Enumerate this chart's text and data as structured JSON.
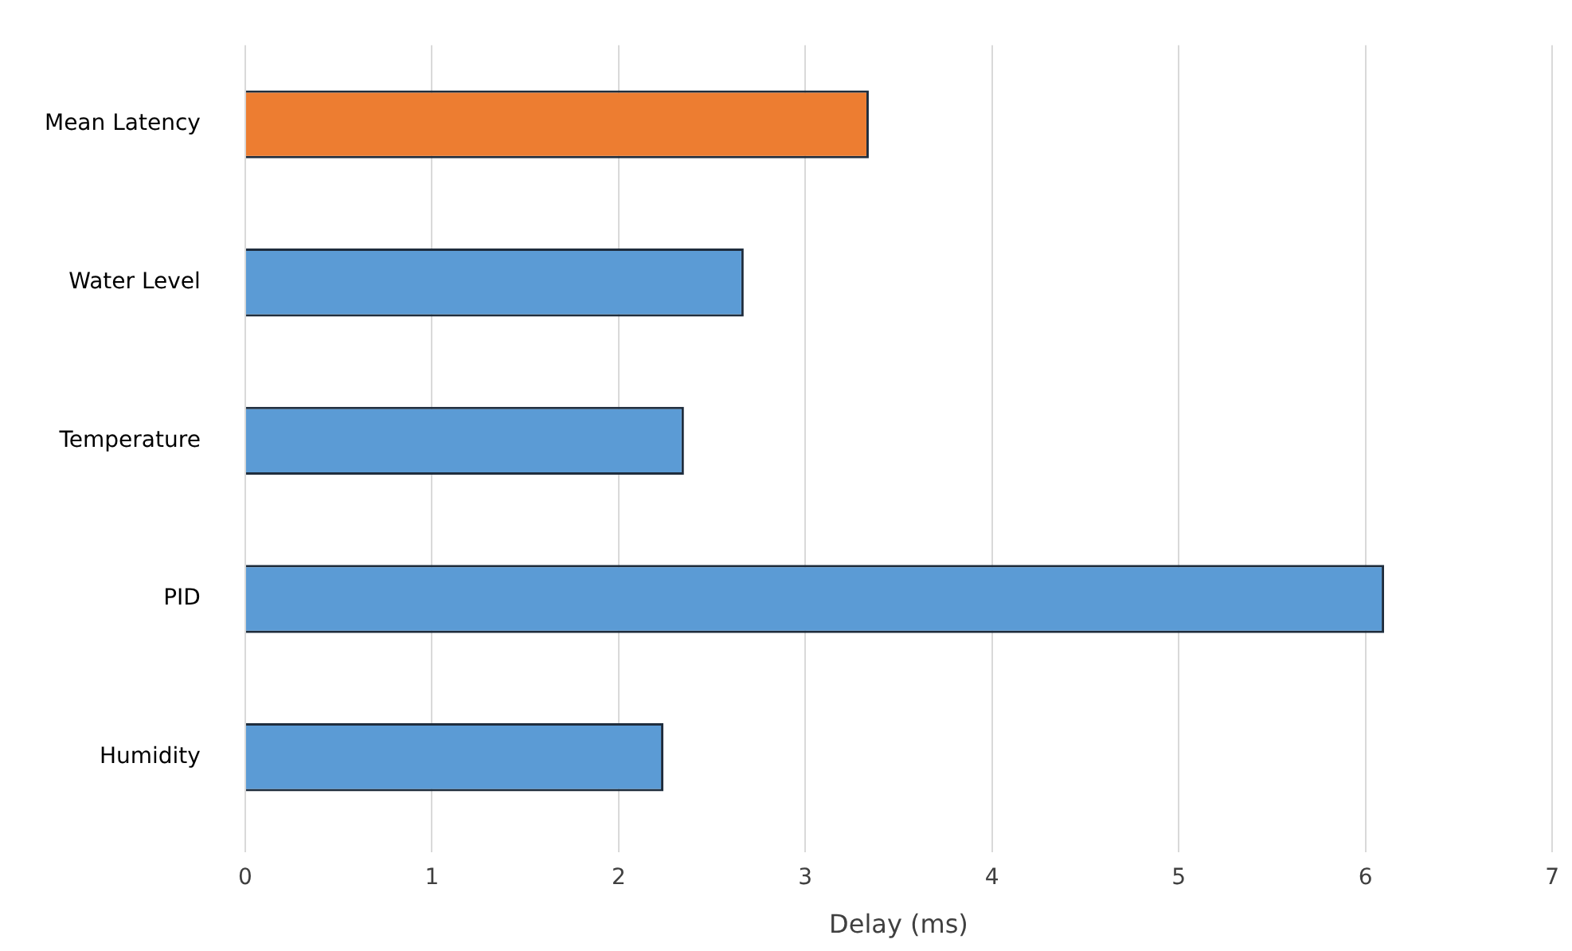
{
  "chart_data": {
    "type": "bar",
    "orientation": "horizontal",
    "xlabel": "Delay (ms)",
    "categories": [
      "Mean Latency",
      "Water Level",
      "Temperature",
      "PID",
      "Humidity"
    ],
    "values": [
      3.34,
      2.67,
      2.35,
      6.1,
      2.24
    ],
    "colors": [
      "#ed7d31",
      "#5b9bd5",
      "#5b9bd5",
      "#5b9bd5",
      "#5b9bd5"
    ],
    "xlim": [
      0,
      7
    ],
    "xticks": [
      0,
      1,
      2,
      3,
      4,
      5,
      6,
      7
    ],
    "grid": "x",
    "legend": false
  }
}
